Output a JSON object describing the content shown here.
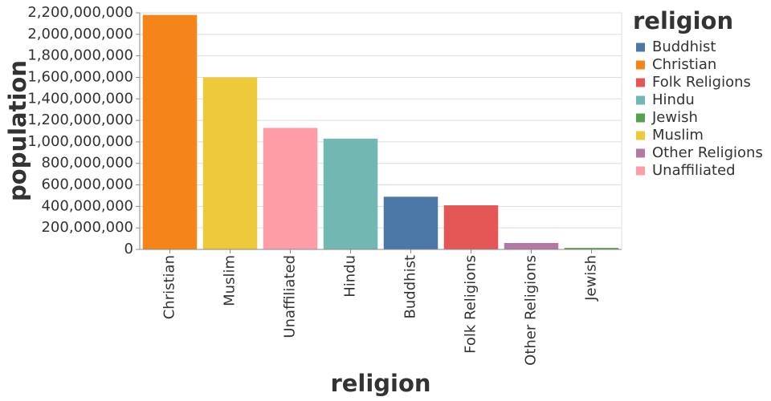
{
  "chart_data": {
    "type": "bar",
    "categories": [
      "Christian",
      "Muslim",
      "Unaffiliated",
      "Hindu",
      "Buddhist",
      "Folk Religions",
      "Other Religions",
      "Jewish"
    ],
    "values": [
      2180000000,
      1600000000,
      1130000000,
      1030000000,
      490000000,
      410000000,
      60000000,
      14000000
    ],
    "x_label": "religion",
    "y_label": "population",
    "ylim": [
      0,
      2200000000
    ],
    "yticks": [
      0,
      {
        "value": 200000000,
        "label": "200,000,000"
      },
      {
        "value": 400000000,
        "label": "400,000,000"
      },
      {
        "value": 600000000,
        "label": "600,000,000"
      },
      {
        "value": 800000000,
        "label": "800,000,000"
      },
      {
        "value": 1000000000,
        "label": "1,000,000,000"
      },
      {
        "value": 1200000000,
        "label": "1,200,000,000"
      },
      {
        "value": 1400000000,
        "label": "1,400,000,000"
      },
      {
        "value": 1600000000,
        "label": "1,600,000,000"
      },
      {
        "value": 1800000000,
        "label": "1,800,000,000"
      },
      {
        "value": 2000000000,
        "label": "2,000,000,000"
      },
      {
        "value": 2200000000,
        "label": "2,200,000,000"
      }
    ],
    "grid": true,
    "legend": {
      "title": "religion",
      "position": "right",
      "items": [
        {
          "name": "Buddhist",
          "color": "#4c78a8"
        },
        {
          "name": "Christian",
          "color": "#f58518"
        },
        {
          "name": "Folk Religions",
          "color": "#e45756"
        },
        {
          "name": "Hindu",
          "color": "#72b7b2"
        },
        {
          "name": "Jewish",
          "color": "#54a24b"
        },
        {
          "name": "Muslim",
          "color": "#eeca3b"
        },
        {
          "name": "Other Religions",
          "color": "#b279a2"
        },
        {
          "name": "Unaffiliated",
          "color": "#ff9da6"
        }
      ]
    }
  }
}
